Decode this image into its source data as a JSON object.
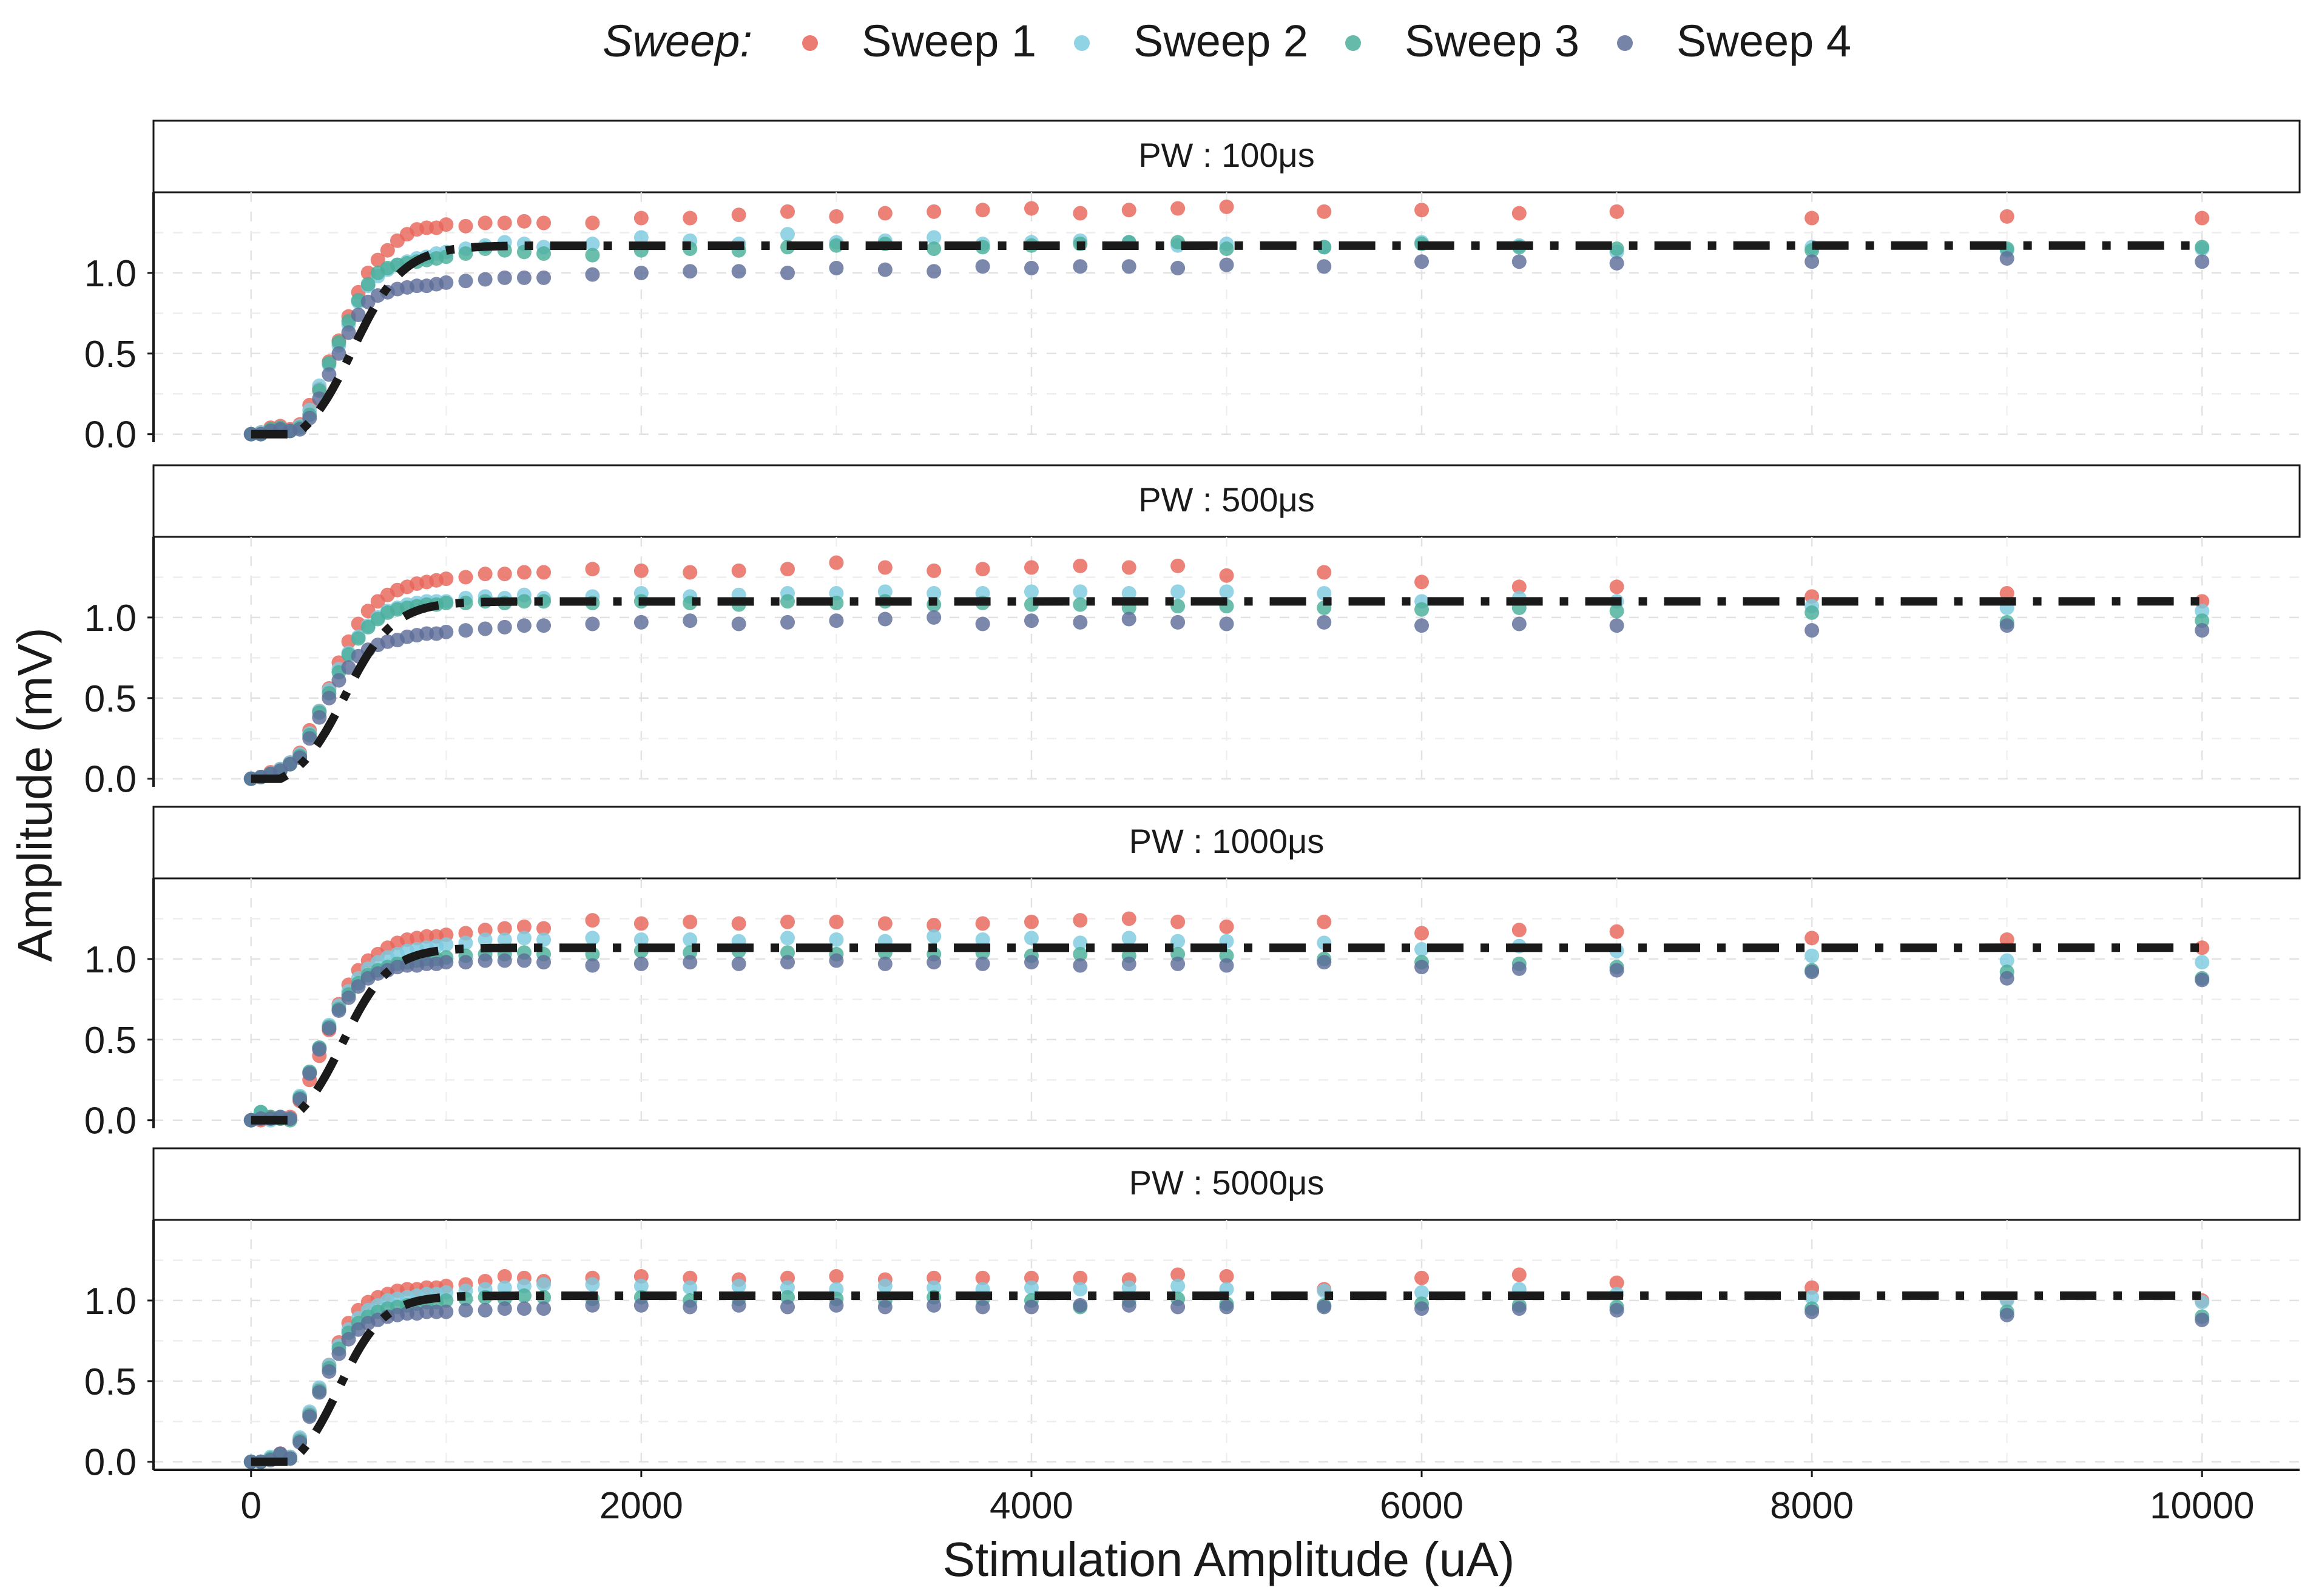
{
  "chart_data": {
    "type": "scatter",
    "layout": "faceted",
    "legend": {
      "title": "Sweep:",
      "placement": "top",
      "entries": [
        {
          "name": "Sweep 1",
          "color": "#E8655A"
        },
        {
          "name": "Sweep 2",
          "color": "#7CCBDF"
        },
        {
          "name": "Sweep 3",
          "color": "#4BAE9A"
        },
        {
          "name": "Sweep 4",
          "color": "#5E6E99"
        }
      ]
    },
    "xlabel": "Stimulation Amplitude (uA)",
    "ylabel": "Amplitude (mV)",
    "xlim": [
      -500,
      10500
    ],
    "xticks": [
      0,
      2000,
      4000,
      6000,
      8000,
      10000
    ],
    "xtick_labels": [
      "0",
      "2000",
      "4000",
      "6000",
      "8000",
      "10000"
    ],
    "ylim": [
      -0.05,
      1.5
    ],
    "yticks": [
      0,
      0.5,
      1
    ],
    "ytick_labels": [
      "0.0",
      "0.5",
      "1.0"
    ],
    "grid": true,
    "fit_line": {
      "style": "dash-dot",
      "color": "#1a1a1a"
    },
    "x": [
      0,
      50,
      100,
      150,
      200,
      250,
      300,
      350,
      400,
      450,
      500,
      550,
      600,
      650,
      700,
      750,
      800,
      850,
      900,
      950,
      1000,
      1100,
      1200,
      1300,
      1400,
      1500,
      1750,
      2000,
      2250,
      2500,
      2750,
      3000,
      3250,
      3500,
      3750,
      4000,
      4250,
      4500,
      4750,
      5000,
      5500,
      6000,
      6500,
      7000,
      8000,
      9000,
      10000
    ],
    "panels": [
      {
        "strip": "PW : 100μs",
        "fit": {
          "plateau": 1.17,
          "threshold": 230,
          "x50": 520,
          "k": 130,
          "end": 10000
        },
        "series": [
          {
            "name": "Sweep 1",
            "values": [
              0.0,
              0.01,
              0.04,
              0.05,
              0.03,
              0.06,
              0.18,
              0.28,
              0.45,
              0.58,
              0.73,
              0.88,
              1.0,
              1.08,
              1.14,
              1.2,
              1.24,
              1.27,
              1.28,
              1.28,
              1.3,
              1.29,
              1.31,
              1.31,
              1.32,
              1.31,
              1.31,
              1.34,
              1.34,
              1.36,
              1.38,
              1.35,
              1.37,
              1.38,
              1.39,
              1.4,
              1.37,
              1.39,
              1.4,
              1.41,
              1.38,
              1.39,
              1.37,
              1.38,
              1.34,
              1.35,
              1.34
            ]
          },
          {
            "name": "Sweep 2",
            "values": [
              0.0,
              0.01,
              0.02,
              0.03,
              0.02,
              0.05,
              0.15,
              0.3,
              0.43,
              0.55,
              0.68,
              0.82,
              0.92,
              0.98,
              1.02,
              1.05,
              1.07,
              1.09,
              1.1,
              1.12,
              1.13,
              1.15,
              1.17,
              1.19,
              1.18,
              1.16,
              1.18,
              1.22,
              1.2,
              1.18,
              1.24,
              1.19,
              1.2,
              1.22,
              1.18,
              1.19,
              1.2,
              1.19,
              1.17,
              1.18,
              1.16,
              1.19,
              1.17,
              1.13,
              1.16,
              1.14,
              1.15
            ]
          },
          {
            "name": "Sweep 3",
            "values": [
              0.0,
              0.0,
              0.03,
              0.04,
              0.02,
              0.04,
              0.12,
              0.27,
              0.44,
              0.57,
              0.7,
              0.83,
              0.93,
              1.0,
              1.03,
              1.05,
              1.06,
              1.07,
              1.08,
              1.09,
              1.1,
              1.12,
              1.15,
              1.14,
              1.13,
              1.12,
              1.11,
              1.14,
              1.15,
              1.14,
              1.16,
              1.17,
              1.18,
              1.15,
              1.16,
              1.17,
              1.18,
              1.19,
              1.19,
              1.15,
              1.16,
              1.18,
              1.16,
              1.15,
              1.14,
              1.15,
              1.16
            ]
          },
          {
            "name": "Sweep 4",
            "values": [
              0.0,
              0.0,
              0.02,
              0.03,
              0.02,
              0.03,
              0.1,
              0.22,
              0.37,
              0.5,
              0.63,
              0.74,
              0.82,
              0.86,
              0.88,
              0.9,
              0.91,
              0.92,
              0.92,
              0.93,
              0.94,
              0.95,
              0.96,
              0.97,
              0.97,
              0.97,
              0.99,
              1.0,
              1.01,
              1.01,
              1.0,
              1.03,
              1.02,
              1.01,
              1.04,
              1.03,
              1.04,
              1.04,
              1.03,
              1.05,
              1.04,
              1.07,
              1.07,
              1.06,
              1.07,
              1.09,
              1.07
            ]
          }
        ]
      },
      {
        "strip": "PW : 500μs",
        "fit": {
          "plateau": 1.1,
          "threshold": 150,
          "x50": 480,
          "k": 125,
          "end": 10000
        },
        "series": [
          {
            "name": "Sweep 1",
            "values": [
              0.0,
              0.01,
              0.04,
              0.06,
              0.1,
              0.16,
              0.3,
              0.42,
              0.56,
              0.72,
              0.85,
              0.96,
              1.04,
              1.1,
              1.14,
              1.17,
              1.19,
              1.21,
              1.22,
              1.23,
              1.24,
              1.25,
              1.27,
              1.27,
              1.28,
              1.28,
              1.3,
              1.29,
              1.28,
              1.29,
              1.3,
              1.34,
              1.31,
              1.29,
              1.3,
              1.31,
              1.32,
              1.31,
              1.32,
              1.26,
              1.28,
              1.22,
              1.19,
              1.19,
              1.13,
              1.15,
              1.1
            ]
          },
          {
            "name": "Sweep 2",
            "values": [
              0.0,
              0.01,
              0.03,
              0.06,
              0.1,
              0.15,
              0.28,
              0.42,
              0.55,
              0.68,
              0.78,
              0.88,
              0.95,
              1.0,
              1.04,
              1.06,
              1.08,
              1.09,
              1.1,
              1.1,
              1.1,
              1.12,
              1.13,
              1.12,
              1.14,
              1.12,
              1.13,
              1.15,
              1.13,
              1.14,
              1.15,
              1.15,
              1.16,
              1.15,
              1.15,
              1.16,
              1.16,
              1.15,
              1.16,
              1.16,
              1.15,
              1.1,
              1.12,
              1.1,
              1.07,
              1.06,
              1.04
            ]
          },
          {
            "name": "Sweep 3",
            "values": [
              0.0,
              0.01,
              0.03,
              0.05,
              0.09,
              0.14,
              0.27,
              0.41,
              0.53,
              0.66,
              0.77,
              0.87,
              0.94,
              0.99,
              1.03,
              1.05,
              1.06,
              1.07,
              1.08,
              1.08,
              1.09,
              1.09,
              1.1,
              1.09,
              1.1,
              1.1,
              1.09,
              1.1,
              1.09,
              1.08,
              1.1,
              1.09,
              1.1,
              1.08,
              1.09,
              1.08,
              1.08,
              1.06,
              1.07,
              1.07,
              1.06,
              1.05,
              1.06,
              1.04,
              1.03,
              0.97,
              0.98
            ]
          },
          {
            "name": "Sweep 4",
            "values": [
              0.0,
              0.01,
              0.03,
              0.05,
              0.09,
              0.13,
              0.25,
              0.38,
              0.5,
              0.61,
              0.69,
              0.76,
              0.8,
              0.83,
              0.85,
              0.86,
              0.88,
              0.89,
              0.9,
              0.9,
              0.91,
              0.92,
              0.93,
              0.94,
              0.95,
              0.95,
              0.96,
              0.97,
              0.98,
              0.96,
              0.97,
              0.98,
              0.99,
              1.0,
              0.96,
              0.98,
              0.97,
              0.99,
              0.97,
              0.96,
              0.97,
              0.95,
              0.96,
              0.95,
              0.92,
              0.95,
              0.92
            ]
          }
        ]
      },
      {
        "strip": "PW : 1000μs",
        "fit": {
          "plateau": 1.07,
          "threshold": 190,
          "x50": 470,
          "k": 120,
          "end": 10000
        },
        "series": [
          {
            "name": "Sweep 1",
            "values": [
              0.0,
              0.0,
              0.02,
              0.01,
              0.02,
              0.12,
              0.25,
              0.4,
              0.56,
              0.72,
              0.84,
              0.93,
              0.99,
              1.03,
              1.07,
              1.1,
              1.12,
              1.13,
              1.14,
              1.14,
              1.15,
              1.16,
              1.18,
              1.19,
              1.2,
              1.19,
              1.24,
              1.22,
              1.23,
              1.22,
              1.23,
              1.23,
              1.22,
              1.21,
              1.22,
              1.23,
              1.24,
              1.25,
              1.23,
              1.2,
              1.23,
              1.16,
              1.18,
              1.17,
              1.13,
              1.12,
              1.07
            ]
          },
          {
            "name": "Sweep 2",
            "values": [
              0.0,
              0.05,
              0.0,
              0.02,
              0.01,
              0.15,
              0.3,
              0.45,
              0.59,
              0.71,
              0.8,
              0.88,
              0.94,
              0.98,
              1.01,
              1.03,
              1.05,
              1.06,
              1.07,
              1.08,
              1.09,
              1.1,
              1.12,
              1.12,
              1.13,
              1.12,
              1.13,
              1.12,
              1.12,
              1.11,
              1.13,
              1.12,
              1.11,
              1.14,
              1.12,
              1.13,
              1.1,
              1.13,
              1.11,
              1.11,
              1.1,
              1.06,
              1.08,
              1.05,
              1.02,
              0.99,
              0.98
            ]
          },
          {
            "name": "Sweep 3",
            "values": [
              0.0,
              0.05,
              0.02,
              0.01,
              0.0,
              0.14,
              0.3,
              0.45,
              0.58,
              0.69,
              0.78,
              0.85,
              0.9,
              0.93,
              0.95,
              0.97,
              0.98,
              0.99,
              1.0,
              1.0,
              1.01,
              1.02,
              1.03,
              1.03,
              1.04,
              1.03,
              1.03,
              1.05,
              1.04,
              1.05,
              1.04,
              1.03,
              1.04,
              1.03,
              1.04,
              1.02,
              1.03,
              1.02,
              1.03,
              1.02,
              1.0,
              0.98,
              0.97,
              0.95,
              0.93,
              0.92,
              0.88
            ]
          },
          {
            "name": "Sweep 4",
            "values": [
              0.0,
              0.01,
              0.01,
              0.02,
              0.01,
              0.13,
              0.29,
              0.44,
              0.57,
              0.68,
              0.76,
              0.83,
              0.88,
              0.91,
              0.93,
              0.95,
              0.96,
              0.96,
              0.97,
              0.97,
              0.98,
              0.98,
              0.99,
              0.99,
              0.99,
              0.98,
              0.96,
              0.97,
              0.98,
              0.97,
              0.98,
              0.99,
              0.97,
              0.98,
              0.97,
              0.98,
              0.96,
              0.97,
              0.97,
              0.96,
              0.98,
              0.95,
              0.94,
              0.93,
              0.92,
              0.88,
              0.87
            ]
          }
        ]
      },
      {
        "strip": "PW : 5000μs",
        "fit": {
          "plateau": 1.03,
          "threshold": 200,
          "x50": 450,
          "k": 115,
          "end": 10000
        },
        "series": [
          {
            "name": "Sweep 1",
            "values": [
              0.0,
              0.0,
              0.02,
              0.05,
              0.03,
              0.14,
              0.3,
              0.45,
              0.6,
              0.74,
              0.86,
              0.94,
              0.99,
              1.02,
              1.04,
              1.06,
              1.07,
              1.07,
              1.08,
              1.08,
              1.09,
              1.1,
              1.12,
              1.15,
              1.14,
              1.12,
              1.14,
              1.15,
              1.14,
              1.13,
              1.14,
              1.15,
              1.13,
              1.14,
              1.14,
              1.14,
              1.14,
              1.13,
              1.16,
              1.15,
              1.07,
              1.14,
              1.16,
              1.11,
              1.08,
              1.01,
              1.0
            ]
          },
          {
            "name": "Sweep 2",
            "values": [
              0.0,
              0.0,
              0.03,
              0.04,
              0.03,
              0.15,
              0.31,
              0.46,
              0.6,
              0.72,
              0.82,
              0.89,
              0.94,
              0.97,
              1.0,
              1.01,
              1.02,
              1.03,
              1.04,
              1.04,
              1.05,
              1.06,
              1.07,
              1.08,
              1.09,
              1.1,
              1.1,
              1.09,
              1.08,
              1.09,
              1.08,
              1.07,
              1.09,
              1.08,
              1.07,
              1.08,
              1.07,
              1.08,
              1.09,
              1.07,
              1.06,
              1.05,
              1.07,
              1.04,
              1.02,
              1.0,
              0.99
            ]
          },
          {
            "name": "Sweep 3",
            "values": [
              0.0,
              0.0,
              0.02,
              0.04,
              0.02,
              0.13,
              0.29,
              0.44,
              0.58,
              0.7,
              0.8,
              0.86,
              0.9,
              0.93,
              0.95,
              0.96,
              0.97,
              0.98,
              0.99,
              0.99,
              1.0,
              1.01,
              1.02,
              1.01,
              1.03,
              1.02,
              1.01,
              1.02,
              1.0,
              1.01,
              1.02,
              1.01,
              1.0,
              1.02,
              1.01,
              1.0,
              0.96,
              1.0,
              1.01,
              0.98,
              0.97,
              0.98,
              0.97,
              0.96,
              0.95,
              0.93,
              0.9
            ]
          },
          {
            "name": "Sweep 4",
            "values": [
              0.0,
              0.0,
              0.01,
              0.05,
              0.02,
              0.12,
              0.28,
              0.43,
              0.56,
              0.67,
              0.76,
              0.82,
              0.86,
              0.88,
              0.9,
              0.91,
              0.92,
              0.92,
              0.93,
              0.93,
              0.93,
              0.94,
              0.94,
              0.95,
              0.95,
              0.95,
              0.97,
              0.97,
              0.96,
              0.97,
              0.96,
              0.97,
              0.96,
              0.97,
              0.96,
              0.96,
              0.97,
              0.97,
              0.96,
              0.96,
              0.96,
              0.95,
              0.95,
              0.94,
              0.93,
              0.91,
              0.88
            ]
          }
        ]
      }
    ]
  }
}
